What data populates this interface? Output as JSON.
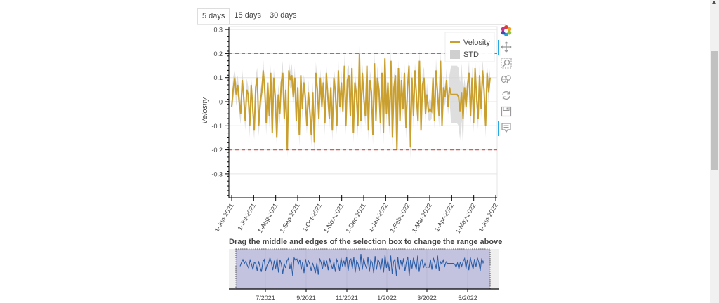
{
  "tabs": [
    {
      "label": "5 days",
      "active": true
    },
    {
      "label": "15 days",
      "active": false
    },
    {
      "label": "30 days",
      "active": false
    }
  ],
  "main_chart": {
    "ylabel": "Velosity",
    "legend": [
      {
        "label": "Velosity",
        "color": "#c9a030"
      },
      {
        "label": "STD",
        "color": "#d3d3d3"
      }
    ],
    "threshold_color": "#d62728"
  },
  "toolbar": {
    "items": [
      {
        "name": "bokeh-logo",
        "active": false
      },
      {
        "name": "pan-tool",
        "active": true
      },
      {
        "name": "box-zoom-tool",
        "active": false
      },
      {
        "name": "wheel-zoom-tool",
        "active": false
      },
      {
        "name": "reset-tool",
        "active": false
      },
      {
        "name": "save-tool",
        "active": false
      },
      {
        "name": "hover-tool",
        "active": true
      }
    ]
  },
  "range_selector": {
    "title": "Drag the middle and edges of the selection box to change the range above",
    "ticks": [
      "7/2021",
      "9/2021",
      "11/2021",
      "1/2022",
      "3/2022",
      "5/2022"
    ],
    "line_color": "#2b5ea7",
    "selection_color": "#c3c3e0"
  },
  "chart_data": [
    {
      "type": "line",
      "title": "",
      "xlabel": "",
      "ylabel": "Velosity",
      "ylim": [
        -0.39,
        0.3
      ],
      "yticks": [
        -0.3,
        -0.2,
        -0.1,
        0,
        0.1,
        0.2,
        0.3
      ],
      "xticks": [
        "1-Jun-2021",
        "1-Jul-2021",
        "1-Aug-2021",
        "1-Sep-2021",
        "1-Oct-2021",
        "1-Nov-2021",
        "1-Dec-2021",
        "1-Jan-2022",
        "1-Feb-2022",
        "1-Mar-2022",
        "1-Apr-2022",
        "1-May-2022",
        "1-Jun-2022"
      ],
      "hlines": [
        0.2,
        -0.2
      ],
      "legend": [
        "Velosity",
        "STD"
      ],
      "legend_position": "top_right",
      "grid": true,
      "series": [
        {
          "name": "Velosity",
          "x_start": "2021-06-01",
          "x_end": "2022-05-25",
          "values": [
            -0.02,
            0.05,
            0.1,
            0.03,
            0.07,
            0.0,
            -0.05,
            0.09,
            0.02,
            -0.08,
            0.05,
            0.03,
            -0.1,
            0.07,
            -0.03,
            -0.12,
            0.06,
            0.1,
            -0.1,
            0.0,
            0.04,
            0.13,
            0.05,
            -0.09,
            0.08,
            -0.06,
            0.12,
            -0.13,
            0.1,
            0.02,
            -0.15,
            0.03,
            -0.05,
            0.08,
            0.12,
            -0.07,
            0.05,
            -0.2,
            0.13,
            0.09,
            0.11,
            0.02,
            0.1,
            -0.08,
            0.06,
            -0.14,
            0.11,
            -0.03,
            0.08,
            0.02,
            -0.1,
            0.04,
            -0.04,
            -0.14,
            0.04,
            -0.17,
            0.12,
            0.05,
            -0.07,
            0.1,
            -0.02,
            0.08,
            -0.09,
            0.12,
            0.02,
            -0.07,
            0.06,
            -0.12,
            0.1,
            0.04,
            -0.1,
            0.13,
            -0.02,
            0.08,
            -0.04,
            0.15,
            -0.1,
            0.09,
            0.11,
            -0.06,
            0.14,
            -0.13,
            0.08,
            0.03,
            -0.1,
            0.2,
            -0.08,
            0.12,
            0.01,
            -0.06,
            0.15,
            -0.12,
            0.09,
            0.04,
            -0.14,
            0.16,
            -0.08,
            0.1,
            0.05,
            -0.09,
            0.12,
            -0.13,
            0.18,
            -0.05,
            0.08,
            -0.1,
            0.17,
            -0.15,
            0.06,
            0.11,
            -0.2,
            0.14,
            -0.08,
            0.09,
            -0.03,
            0.12,
            -0.11,
            0.05,
            0.15,
            -0.19,
            0.1,
            -0.06,
            0.13,
            0.02,
            -0.08,
            0.17,
            -0.12,
            0.07,
            0.1,
            -0.05,
            0.03,
            -0.04,
            -0.03,
            -0.04,
            0.1,
            -0.08,
            0.13,
            0.04,
            -0.06,
            0.17,
            -0.1,
            0.06,
            0.02,
            0.09,
            -0.02,
            0.06,
            0.03,
            0.03,
            0.03,
            0.03,
            0.03,
            0.02,
            -0.04,
            0.04,
            -0.07,
            0.06,
            -0.02,
            0.07,
            0.12,
            -0.06,
            0.1,
            -0.09,
            0.14,
            0.02,
            -0.07,
            0.11,
            -0.03,
            0.13,
            0.05,
            -0.1,
            0.12,
            0.04,
            0.1
          ]
        },
        {
          "name": "STD",
          "type": "band",
          "description": "grey band of +/- standard deviation around Velosity"
        }
      ]
    },
    {
      "type": "line",
      "title": "Drag the middle and edges of the selection box to change the range above",
      "xticks": [
        "7/2021",
        "9/2021",
        "11/2021",
        "1/2022",
        "3/2022",
        "5/2022"
      ],
      "series": [
        {
          "name": "Velosity (overview)"
        }
      ],
      "selection_range": [
        "2021-06-01",
        "2022-06-01"
      ]
    }
  ]
}
